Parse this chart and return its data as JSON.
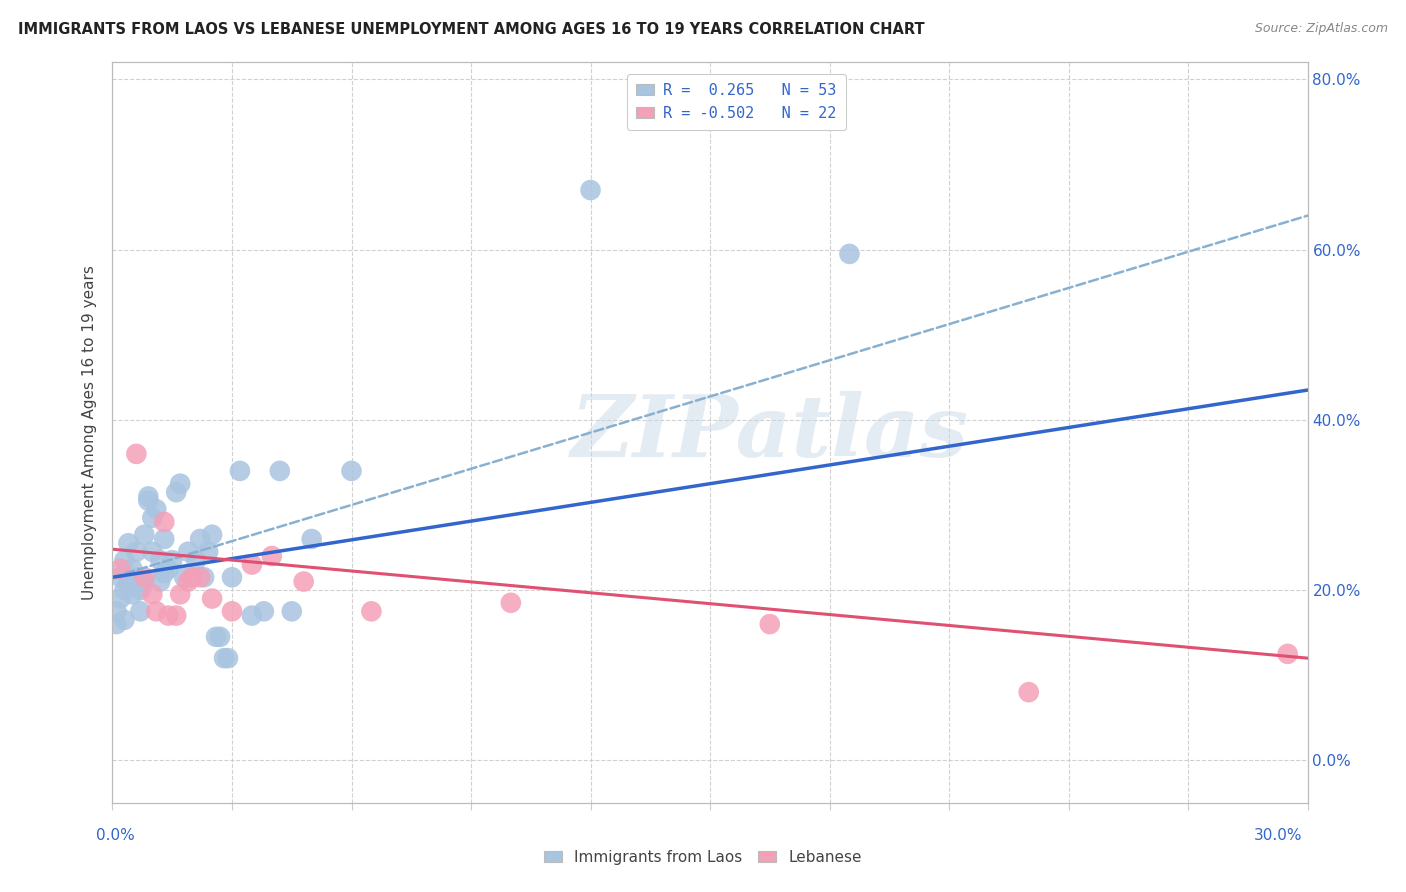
{
  "title": "IMMIGRANTS FROM LAOS VS LEBANESE UNEMPLOYMENT AMONG AGES 16 TO 19 YEARS CORRELATION CHART",
  "source": "Source: ZipAtlas.com",
  "ylabel": "Unemployment Among Ages 16 to 19 years",
  "right_ytick_labels": [
    "0.0%",
    "20.0%",
    "40.0%",
    "60.0%",
    "80.0%"
  ],
  "right_ytick_vals": [
    0.0,
    0.2,
    0.4,
    0.6,
    0.8
  ],
  "legend_entry1": "R =  0.265   N = 53",
  "legend_entry2": "R = -0.502   N = 22",
  "blue_scatter_color": "#a8c4e0",
  "pink_scatter_color": "#f4a0b8",
  "blue_line_color": "#3366cc",
  "pink_line_color": "#e05070",
  "dashed_line_color": "#88b0d0",
  "watermark_text": "ZIPatlas",
  "xmin": 0.0,
  "xmax": 0.3,
  "ymin": -0.05,
  "ymax": 0.82,
  "blue_trend_x0": 0.0,
  "blue_trend_y0": 0.215,
  "blue_trend_x1": 0.3,
  "blue_trend_y1": 0.435,
  "dash_trend_x0": 0.0,
  "dash_trend_y0": 0.215,
  "dash_trend_x1": 0.3,
  "dash_trend_y1": 0.64,
  "pink_trend_x0": 0.0,
  "pink_trend_y0": 0.248,
  "pink_trend_x1": 0.3,
  "pink_trend_y1": 0.12,
  "blue_x": [
    0.001,
    0.001,
    0.002,
    0.002,
    0.003,
    0.003,
    0.003,
    0.004,
    0.004,
    0.005,
    0.005,
    0.006,
    0.006,
    0.007,
    0.007,
    0.007,
    0.008,
    0.008,
    0.009,
    0.009,
    0.01,
    0.01,
    0.011,
    0.012,
    0.012,
    0.013,
    0.013,
    0.014,
    0.015,
    0.016,
    0.017,
    0.018,
    0.019,
    0.02,
    0.021,
    0.022,
    0.023,
    0.024,
    0.025,
    0.026,
    0.027,
    0.028,
    0.029,
    0.03,
    0.032,
    0.035,
    0.038,
    0.042,
    0.045,
    0.05,
    0.06,
    0.12,
    0.185
  ],
  "blue_y": [
    0.175,
    0.16,
    0.215,
    0.19,
    0.235,
    0.2,
    0.165,
    0.255,
    0.21,
    0.225,
    0.195,
    0.245,
    0.215,
    0.21,
    0.2,
    0.175,
    0.265,
    0.21,
    0.31,
    0.305,
    0.285,
    0.245,
    0.295,
    0.235,
    0.21,
    0.26,
    0.22,
    0.225,
    0.235,
    0.315,
    0.325,
    0.215,
    0.245,
    0.215,
    0.235,
    0.26,
    0.215,
    0.245,
    0.265,
    0.145,
    0.145,
    0.12,
    0.12,
    0.215,
    0.34,
    0.17,
    0.175,
    0.34,
    0.175,
    0.26,
    0.34,
    0.67,
    0.595
  ],
  "pink_x": [
    0.002,
    0.006,
    0.008,
    0.01,
    0.011,
    0.013,
    0.014,
    0.016,
    0.017,
    0.019,
    0.02,
    0.022,
    0.025,
    0.03,
    0.035,
    0.04,
    0.048,
    0.065,
    0.1,
    0.165,
    0.23,
    0.295
  ],
  "pink_y": [
    0.225,
    0.36,
    0.215,
    0.195,
    0.175,
    0.28,
    0.17,
    0.17,
    0.195,
    0.21,
    0.215,
    0.215,
    0.19,
    0.175,
    0.23,
    0.24,
    0.21,
    0.175,
    0.185,
    0.16,
    0.08,
    0.125
  ]
}
